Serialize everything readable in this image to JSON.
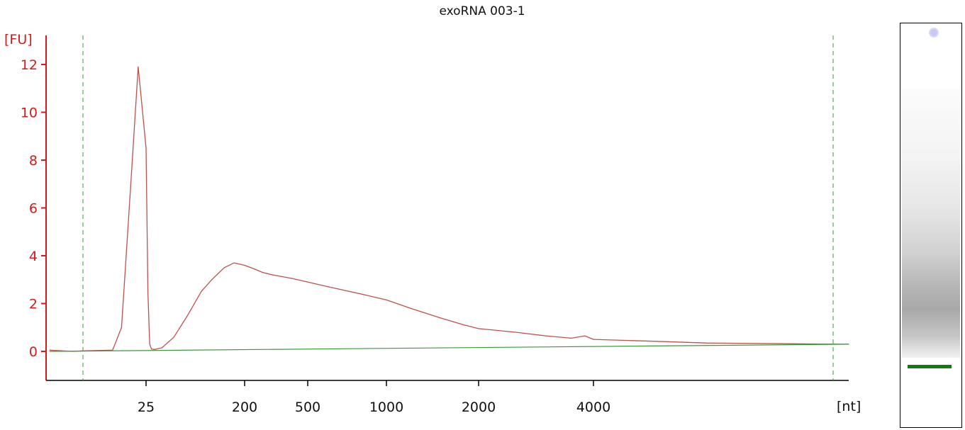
{
  "chart_data": {
    "type": "line",
    "title": "exoRNA 003-1",
    "y_unit_label": "[FU]",
    "x_unit_label": "[nt]",
    "yticks": [
      0,
      2,
      4,
      6,
      8,
      10,
      12
    ],
    "ylim": [
      -1.2,
      13.2
    ],
    "xtick_labels": [
      "25",
      "200",
      "500",
      "1000",
      "2000",
      "4000"
    ],
    "x_scale": "non-linear (ladder-calibrated size axis)",
    "grid": false,
    "markers": [
      "lower marker (dashed green line)",
      "upper marker (dashed green line)"
    ],
    "series": [
      {
        "color": "#c0504d",
        "x_nt": [
          10,
          15,
          18,
          21,
          22,
          23,
          24,
          25,
          26,
          27,
          28,
          30,
          35,
          45,
          60,
          80,
          100,
          130,
          160,
          200,
          230,
          260,
          300,
          400,
          500,
          600,
          800,
          1000,
          1200,
          1500,
          1800,
          2000,
          2500,
          3000,
          3500,
          3800,
          4000,
          5000,
          6000,
          8000,
          10000
        ],
        "y": [
          0.05,
          0.0,
          0.02,
          0.05,
          1.0,
          6.5,
          11.9,
          8.5,
          2.5,
          0.3,
          0.1,
          0.08,
          0.15,
          0.6,
          1.5,
          2.5,
          3.0,
          3.5,
          3.7,
          3.6,
          3.45,
          3.3,
          3.2,
          3.05,
          2.9,
          2.7,
          2.4,
          2.15,
          1.8,
          1.4,
          1.1,
          0.95,
          0.8,
          0.65,
          0.55,
          0.65,
          0.5,
          0.42,
          0.35,
          0.32,
          0.3
        ]
      },
      {
        "color": "#3a9a3a",
        "x_nt": [
          10,
          10000
        ],
        "y": [
          0.0,
          0.3
        ]
      }
    ]
  },
  "gel": {
    "marker_color": "#0e7d0e"
  }
}
